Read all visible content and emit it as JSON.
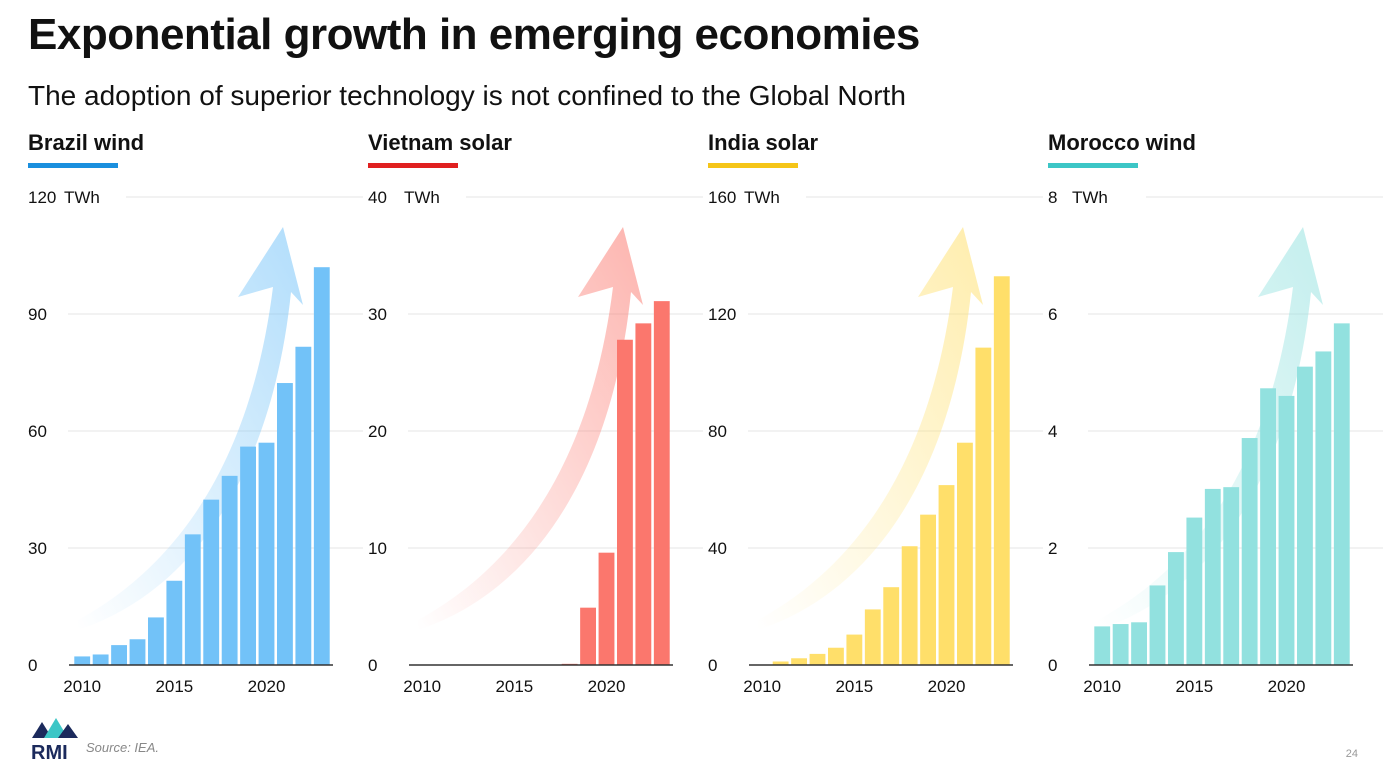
{
  "title": "Exponential growth in emerging economies",
  "subtitle": "The adoption of superior technology is not confined to the Global North",
  "footer": {
    "logo_text": "RMI",
    "source": "Source: IEA.",
    "page_number": "24"
  },
  "chart_data": [
    {
      "type": "bar",
      "title": "Brazil wind",
      "color": "#72c2f8",
      "accent": "#1a8fde",
      "unit": "TWh",
      "ylim": [
        0,
        120
      ],
      "yticks": [
        0,
        30,
        60,
        90,
        120
      ],
      "xtick_labels": [
        "2010",
        "2015",
        "2020"
      ],
      "categories": [
        2010,
        2011,
        2012,
        2013,
        2014,
        2015,
        2016,
        2017,
        2018,
        2019,
        2020,
        2021,
        2022,
        2023
      ],
      "values": [
        2.2,
        2.7,
        5.1,
        6.6,
        12.2,
        21.6,
        33.5,
        42.4,
        48.5,
        56.0,
        57.0,
        72.3,
        81.6,
        102.0
      ]
    },
    {
      "type": "bar",
      "title": "Vietnam solar",
      "color": "#fb776d",
      "accent": "#e02020",
      "unit": "TWh",
      "ylim": [
        0,
        40
      ],
      "yticks": [
        0,
        10,
        20,
        30,
        40
      ],
      "xtick_labels": [
        "2010",
        "2015",
        "2020"
      ],
      "categories": [
        2010,
        2011,
        2012,
        2013,
        2014,
        2015,
        2016,
        2017,
        2018,
        2019,
        2020,
        2021,
        2022,
        2023
      ],
      "values": [
        0,
        0,
        0,
        0,
        0,
        0,
        0,
        0,
        0.1,
        4.9,
        9.6,
        27.8,
        29.2,
        31.1
      ]
    },
    {
      "type": "bar",
      "title": "India solar",
      "color": "#ffdf6a",
      "accent": "#f5c518",
      "unit": "TWh",
      "ylim": [
        0,
        160
      ],
      "yticks": [
        0,
        40,
        80,
        120,
        160
      ],
      "xtick_labels": [
        "2010",
        "2015",
        "2020"
      ],
      "categories": [
        2010,
        2011,
        2012,
        2013,
        2014,
        2015,
        2016,
        2017,
        2018,
        2019,
        2020,
        2021,
        2022,
        2023
      ],
      "values": [
        0.1,
        1.2,
        2.3,
        3.8,
        5.9,
        10.4,
        19.0,
        26.6,
        40.6,
        51.4,
        61.5,
        76.0,
        108.5,
        132.9
      ]
    },
    {
      "type": "bar",
      "title": "Morocco wind",
      "color": "#92e1df",
      "accent": "#3cc6c6",
      "unit": "TWh",
      "ylim": [
        0,
        8
      ],
      "yticks": [
        0,
        2,
        4,
        6,
        8
      ],
      "xtick_labels": [
        "2010",
        "2015",
        "2020"
      ],
      "categories": [
        2010,
        2011,
        2012,
        2013,
        2014,
        2015,
        2016,
        2017,
        2018,
        2019,
        2020,
        2021,
        2022,
        2023
      ],
      "values": [
        0.66,
        0.7,
        0.73,
        1.36,
        1.93,
        2.52,
        3.01,
        3.04,
        3.88,
        4.73,
        4.6,
        5.1,
        5.36,
        5.84
      ]
    }
  ]
}
